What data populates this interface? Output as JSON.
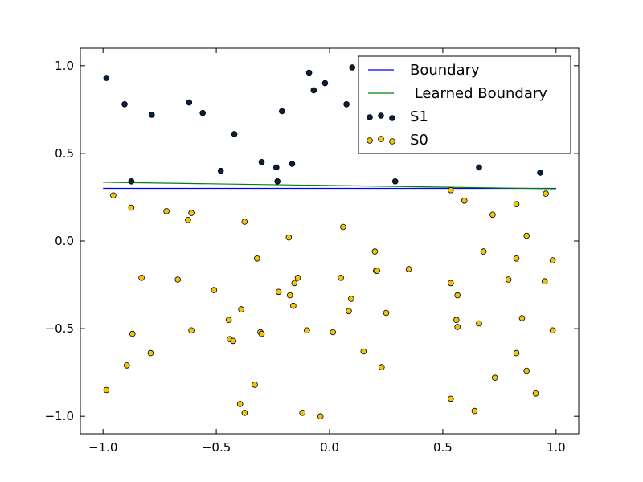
{
  "chart_data": {
    "type": "scatter",
    "title": "",
    "xlabel": "",
    "ylabel": "",
    "xlim": [
      -1.1,
      1.1
    ],
    "ylim": [
      -1.1,
      1.1
    ],
    "xticks": [
      -1.0,
      -0.5,
      0.0,
      0.5,
      1.0
    ],
    "yticks": [
      -1.0,
      -0.5,
      0.0,
      0.5,
      1.0
    ],
    "xtick_labels": [
      "−1.0",
      "−0.5",
      "0.0",
      "0.5",
      "1.0"
    ],
    "ytick_labels": [
      "−1.0",
      "−0.5",
      "0.0",
      "0.5",
      "1.0"
    ],
    "grid": false,
    "legend_position": "top-right",
    "lines": [
      {
        "name": "Boundary",
        "color": "#0000ff",
        "x": [
          -1.0,
          1.0
        ],
        "y": [
          0.3,
          0.3
        ]
      },
      {
        "name": " Learned Boundary",
        "color": "#008000",
        "x": [
          -1.0,
          1.0
        ],
        "y": [
          0.335,
          0.298
        ]
      }
    ],
    "series": [
      {
        "name": "S1",
        "color": "#0a1f3c",
        "points": [
          [
            -0.985,
            0.93
          ],
          [
            -0.905,
            0.78
          ],
          [
            -0.785,
            0.72
          ],
          [
            -0.62,
            0.79
          ],
          [
            -0.56,
            0.73
          ],
          [
            -0.42,
            0.61
          ],
          [
            -0.21,
            0.74
          ],
          [
            -0.09,
            0.96
          ],
          [
            -0.07,
            0.86
          ],
          [
            -0.02,
            0.9
          ],
          [
            0.075,
            0.78
          ],
          [
            0.1,
            0.99
          ],
          [
            -0.48,
            0.4
          ],
          [
            -0.3,
            0.45
          ],
          [
            -0.235,
            0.42
          ],
          [
            -0.165,
            0.44
          ],
          [
            -0.23,
            0.34
          ],
          [
            -0.875,
            0.34
          ],
          [
            0.29,
            0.34
          ],
          [
            0.66,
            0.42
          ],
          [
            0.93,
            0.39
          ]
        ]
      },
      {
        "name": "S0",
        "color": "#f2c40c",
        "points": [
          [
            -0.955,
            0.26
          ],
          [
            -0.875,
            0.19
          ],
          [
            -0.72,
            0.17
          ],
          [
            -0.625,
            0.12
          ],
          [
            -0.61,
            0.16
          ],
          [
            -0.375,
            0.11
          ],
          [
            -0.32,
            -0.1
          ],
          [
            -0.18,
            0.02
          ],
          [
            0.06,
            0.08
          ],
          [
            -0.83,
            -0.21
          ],
          [
            -0.67,
            -0.22
          ],
          [
            -0.51,
            -0.28
          ],
          [
            -0.225,
            -0.29
          ],
          [
            -0.14,
            -0.21
          ],
          [
            -0.155,
            -0.24
          ],
          [
            -0.175,
            -0.31
          ],
          [
            -0.16,
            -0.37
          ],
          [
            -0.39,
            -0.39
          ],
          [
            -0.445,
            -0.45
          ],
          [
            -0.44,
            -0.56
          ],
          [
            -0.425,
            -0.57
          ],
          [
            -0.305,
            -0.52
          ],
          [
            -0.3,
            -0.53
          ],
          [
            -0.87,
            -0.53
          ],
          [
            -0.61,
            -0.51
          ],
          [
            -0.79,
            -0.64
          ],
          [
            -0.895,
            -0.71
          ],
          [
            -0.985,
            -0.85
          ],
          [
            0.05,
            -0.21
          ],
          [
            0.095,
            -0.33
          ],
          [
            0.085,
            -0.4
          ],
          [
            -0.1,
            -0.51
          ],
          [
            0.015,
            -0.52
          ],
          [
            0.2,
            -0.06
          ],
          [
            0.205,
            -0.17
          ],
          [
            0.21,
            -0.17
          ],
          [
            0.35,
            -0.16
          ],
          [
            0.25,
            -0.41
          ],
          [
            0.15,
            -0.63
          ],
          [
            0.23,
            -0.72
          ],
          [
            -0.33,
            -0.82
          ],
          [
            -0.395,
            -0.93
          ],
          [
            -0.375,
            -0.98
          ],
          [
            -0.12,
            -0.98
          ],
          [
            -0.04,
            -1.0
          ],
          [
            0.535,
            0.29
          ],
          [
            0.595,
            0.23
          ],
          [
            0.72,
            0.15
          ],
          [
            0.825,
            0.21
          ],
          [
            0.87,
            0.03
          ],
          [
            0.955,
            0.27
          ],
          [
            0.825,
            -0.1
          ],
          [
            0.985,
            -0.11
          ],
          [
            0.68,
            -0.06
          ],
          [
            0.535,
            -0.24
          ],
          [
            0.565,
            -0.31
          ],
          [
            0.79,
            -0.22
          ],
          [
            0.95,
            -0.23
          ],
          [
            0.56,
            -0.45
          ],
          [
            0.565,
            -0.49
          ],
          [
            0.66,
            -0.47
          ],
          [
            0.85,
            -0.44
          ],
          [
            0.985,
            -0.51
          ],
          [
            0.825,
            -0.64
          ],
          [
            0.87,
            -0.74
          ],
          [
            0.73,
            -0.78
          ],
          [
            0.91,
            -0.87
          ],
          [
            0.535,
            -0.9
          ],
          [
            0.64,
            -0.97
          ]
        ]
      }
    ]
  }
}
